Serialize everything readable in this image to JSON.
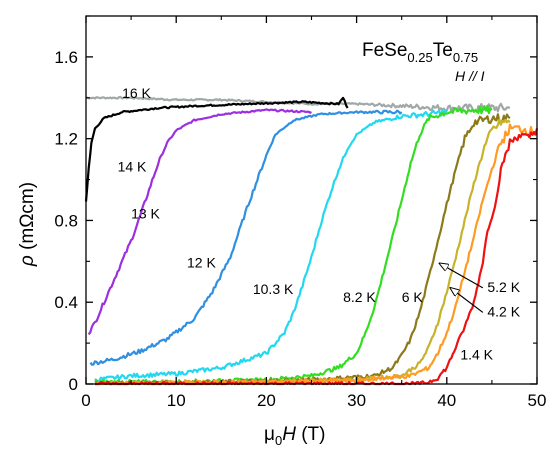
{
  "chart_data": {
    "type": "line",
    "title": {
      "main": "FeSe",
      "sub1": "0.25",
      "mid": "Te",
      "sub2": "0.75"
    },
    "field_orientation": "H // I",
    "xlabel": {
      "prefix": "μ",
      "sub": "0",
      "var": "H",
      "unit": " (T)"
    },
    "ylabel": {
      "var": "ρ",
      "unit": " (mΩcm)"
    },
    "xlim": [
      0,
      50
    ],
    "ylim": [
      0,
      1.8
    ],
    "xticks": [
      "0",
      "10",
      "20",
      "30",
      "40",
      "50"
    ],
    "yticks": [
      "0",
      "0.4",
      "0.8",
      "1.2",
      "1.6"
    ],
    "grid": false,
    "series": [
      {
        "name": "16 K",
        "color": "#a0a8a8",
        "points": [
          [
            0,
            1.4
          ],
          [
            5,
            1.4
          ],
          [
            10,
            1.39
          ],
          [
            15,
            1.39
          ],
          [
            20,
            1.38
          ],
          [
            25,
            1.37
          ],
          [
            30,
            1.37
          ],
          [
            35,
            1.36
          ],
          [
            40,
            1.35
          ],
          [
            45,
            1.35
          ],
          [
            47,
            1.35
          ]
        ]
      },
      {
        "name": "14 K",
        "color": "#000000",
        "points": [
          [
            0,
            0.9
          ],
          [
            0.3,
            1.05
          ],
          [
            0.6,
            1.18
          ],
          [
            1,
            1.25
          ],
          [
            2,
            1.3
          ],
          [
            4,
            1.33
          ],
          [
            8,
            1.35
          ],
          [
            12,
            1.36
          ],
          [
            18,
            1.37
          ],
          [
            24,
            1.38
          ],
          [
            28,
            1.37
          ],
          [
            28.5,
            1.4
          ],
          [
            29,
            1.35
          ]
        ]
      },
      {
        "name": "13 K",
        "color": "#9b30e0",
        "points": [
          [
            0.3,
            0.25
          ],
          [
            1,
            0.3
          ],
          [
            2,
            0.4
          ],
          [
            3,
            0.5
          ],
          [
            4,
            0.6
          ],
          [
            5,
            0.7
          ],
          [
            6,
            0.82
          ],
          [
            7,
            0.95
          ],
          [
            8,
            1.08
          ],
          [
            9,
            1.18
          ],
          [
            10,
            1.24
          ],
          [
            12,
            1.29
          ],
          [
            15,
            1.32
          ],
          [
            20,
            1.34
          ],
          [
            25,
            1.33
          ]
        ]
      },
      {
        "name": "12 K",
        "color": "#2f8fe0",
        "points": [
          [
            0.5,
            0.1
          ],
          [
            3,
            0.12
          ],
          [
            6,
            0.16
          ],
          [
            9,
            0.22
          ],
          [
            12,
            0.32
          ],
          [
            14,
            0.45
          ],
          [
            16,
            0.62
          ],
          [
            17,
            0.75
          ],
          [
            18,
            0.88
          ],
          [
            19,
            1.0
          ],
          [
            20,
            1.12
          ],
          [
            21,
            1.22
          ],
          [
            23,
            1.29
          ],
          [
            26,
            1.32
          ],
          [
            30,
            1.33
          ],
          [
            35,
            1.33
          ]
        ]
      },
      {
        "name": "10.3 K",
        "color": "#22d8f0",
        "points": [
          [
            1,
            0.02
          ],
          [
            5,
            0.04
          ],
          [
            10,
            0.05
          ],
          [
            15,
            0.08
          ],
          [
            20,
            0.15
          ],
          [
            22,
            0.25
          ],
          [
            23,
            0.35
          ],
          [
            24,
            0.48
          ],
          [
            25,
            0.62
          ],
          [
            26,
            0.78
          ],
          [
            27,
            0.92
          ],
          [
            28,
            1.05
          ],
          [
            29,
            1.15
          ],
          [
            30,
            1.22
          ],
          [
            32,
            1.28
          ],
          [
            35,
            1.31
          ],
          [
            38,
            1.32
          ],
          [
            40,
            1.33
          ]
        ]
      },
      {
        "name": "8.2 K",
        "color": "#33dd22",
        "points": [
          [
            1,
            0.01
          ],
          [
            10,
            0.01
          ],
          [
            20,
            0.02
          ],
          [
            25,
            0.04
          ],
          [
            28,
            0.08
          ],
          [
            30,
            0.15
          ],
          [
            31,
            0.25
          ],
          [
            32,
            0.38
          ],
          [
            33,
            0.55
          ],
          [
            34,
            0.72
          ],
          [
            35,
            0.9
          ],
          [
            36,
            1.08
          ],
          [
            37,
            1.22
          ],
          [
            38,
            1.3
          ],
          [
            40,
            1.33
          ],
          [
            43,
            1.34
          ],
          [
            45,
            1.34
          ]
        ]
      },
      {
        "name": "6 K",
        "color": "#8c7a1a",
        "points": [
          [
            1,
            0.0
          ],
          [
            15,
            0.01
          ],
          [
            25,
            0.02
          ],
          [
            32,
            0.04
          ],
          [
            34,
            0.08
          ],
          [
            35,
            0.14
          ],
          [
            36,
            0.22
          ],
          [
            37,
            0.35
          ],
          [
            38,
            0.52
          ],
          [
            39,
            0.7
          ],
          [
            40,
            0.88
          ],
          [
            41,
            1.05
          ],
          [
            42,
            1.2
          ],
          [
            43,
            1.28
          ],
          [
            45,
            1.3
          ],
          [
            47,
            1.3
          ]
        ]
      },
      {
        "name": "5.2 K",
        "color": "#c8b22a",
        "points": [
          [
            1,
            0.0
          ],
          [
            20,
            0.01
          ],
          [
            30,
            0.02
          ],
          [
            35,
            0.04
          ],
          [
            37,
            0.1
          ],
          [
            38,
            0.18
          ],
          [
            39,
            0.3
          ],
          [
            40,
            0.45
          ],
          [
            41,
            0.62
          ],
          [
            42,
            0.8
          ],
          [
            43,
            0.98
          ],
          [
            44,
            1.14
          ],
          [
            45,
            1.24
          ],
          [
            46,
            1.28
          ],
          [
            47,
            1.28
          ]
        ]
      },
      {
        "name": "4.2 K",
        "color": "#ff9a22",
        "points": [
          [
            1,
            0.0
          ],
          [
            20,
            0.01
          ],
          [
            30,
            0.02
          ],
          [
            36,
            0.04
          ],
          [
            38,
            0.08
          ],
          [
            39,
            0.15
          ],
          [
            40,
            0.25
          ],
          [
            41,
            0.38
          ],
          [
            42,
            0.55
          ],
          [
            43,
            0.72
          ],
          [
            44,
            0.9
          ],
          [
            45,
            1.05
          ],
          [
            46,
            1.18
          ],
          [
            47,
            1.25
          ],
          [
            48,
            1.25
          ],
          [
            50,
            1.23
          ]
        ]
      },
      {
        "name": "1.4 K",
        "color": "#ee1111",
        "points": [
          [
            1,
            0.0
          ],
          [
            15,
            0.0
          ],
          [
            30,
            0.0
          ],
          [
            37,
            0.0
          ],
          [
            38,
            0.01
          ],
          [
            39,
            0.03
          ],
          [
            40,
            0.08
          ],
          [
            41,
            0.18
          ],
          [
            42,
            0.28
          ],
          [
            43,
            0.4
          ],
          [
            44,
            0.6
          ],
          [
            44.5,
            0.75
          ],
          [
            45,
            0.82
          ],
          [
            45.5,
            0.9
          ],
          [
            46,
            1.05
          ],
          [
            47,
            1.18
          ],
          [
            48,
            1.22
          ],
          [
            49,
            1.2
          ],
          [
            50,
            1.25
          ]
        ]
      }
    ],
    "labels": [
      {
        "text": "16 K",
        "x": 4,
        "y": 1.4
      },
      {
        "text": "14 K",
        "x": 3.5,
        "y": 1.04
      },
      {
        "text": "13 K",
        "x": 5,
        "y": 0.81
      },
      {
        "text": "12 K",
        "x": 11.2,
        "y": 0.57
      },
      {
        "text": "10.3 K",
        "x": 18.5,
        "y": 0.44
      },
      {
        "text": "8.2 K",
        "x": 28.5,
        "y": 0.4
      },
      {
        "text": "6 K",
        "x": 35,
        "y": 0.4
      },
      {
        "text": "5.2 K",
        "x": 44.5,
        "y": 0.45
      },
      {
        "text": "4.2 K",
        "x": 44.5,
        "y": 0.33
      },
      {
        "text": "1.4 K",
        "x": 41.5,
        "y": 0.12
      }
    ]
  }
}
